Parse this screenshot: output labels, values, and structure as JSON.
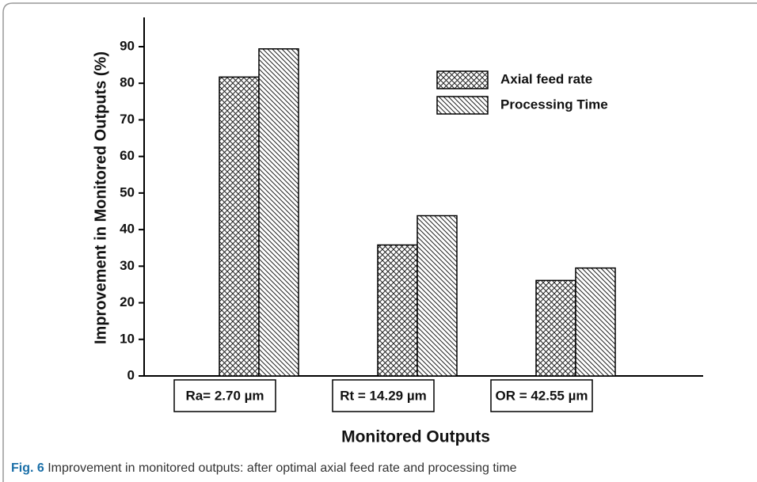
{
  "chart_data": {
    "type": "bar",
    "ylabel": "Improvement in Monitored Outputs (%)",
    "xlabel": "Monitored Outputs",
    "categories": [
      "Ra= 2.70 µm",
      "Rt = 14.29 µm",
      "OR = 42.55 µm"
    ],
    "series": [
      {
        "name": "Axial feed rate",
        "color": "#000000",
        "values": [
          81.7,
          35.8,
          26.1
        ]
      },
      {
        "name": "Processing Time",
        "color": "#000000",
        "values": [
          89.4,
          43.8,
          29.5
        ]
      }
    ],
    "ylim": [
      0,
      98
    ],
    "yticks": [
      0,
      10,
      20,
      30,
      40,
      50,
      60,
      70,
      80,
      90
    ],
    "legend": "upper-right"
  },
  "caption": {
    "label": "Fig. 6",
    "text": "Improvement in monitored outputs: after optimal axial feed rate and processing time"
  }
}
